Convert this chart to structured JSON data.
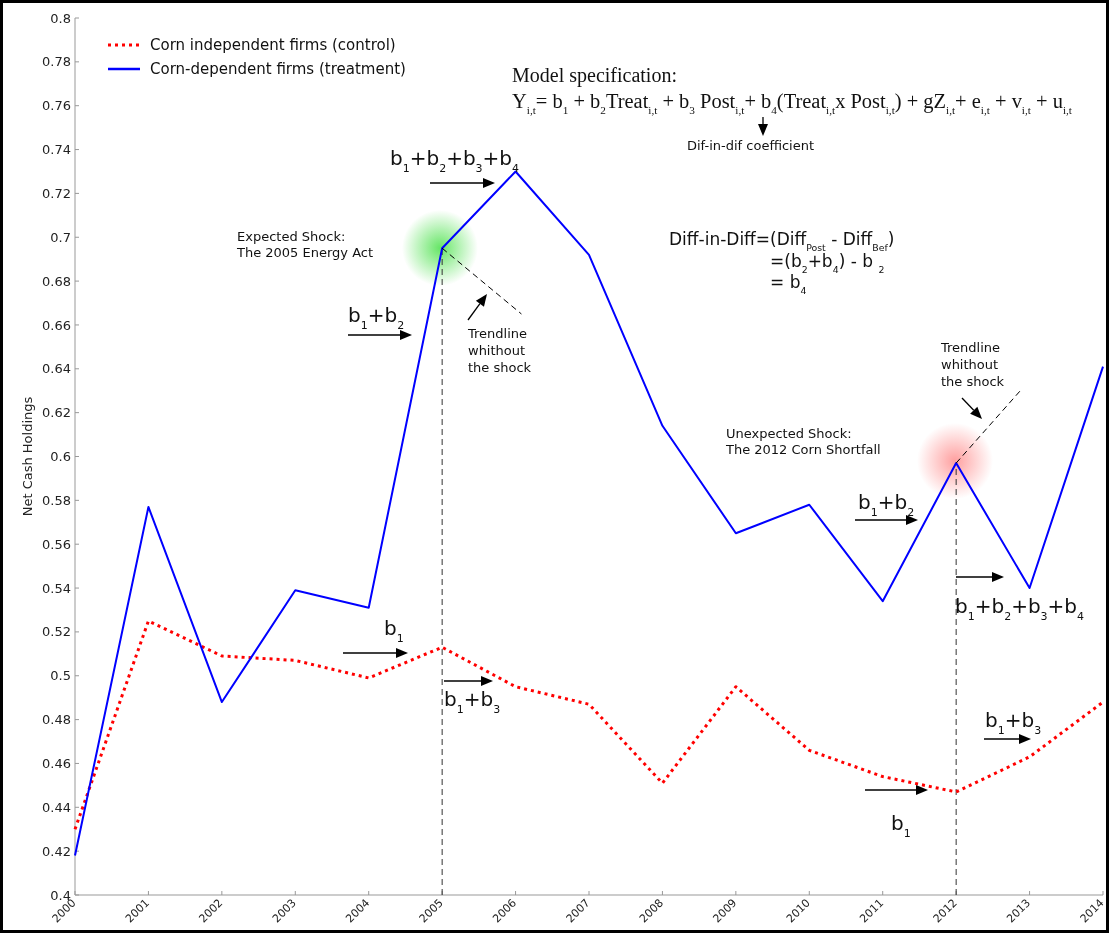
{
  "chart_data": {
    "type": "line",
    "ylabel": "Net Cash Holdings",
    "x": [
      2000,
      2001,
      2002,
      2003,
      2004,
      2005,
      2006,
      2007,
      2008,
      2009,
      2010,
      2011,
      2012,
      2013,
      2014
    ],
    "xlim": [
      2000,
      2014
    ],
    "xticks": [
      2000,
      2001,
      2002,
      2003,
      2004,
      2005,
      2006,
      2007,
      2008,
      2009,
      2010,
      2011,
      2012,
      2013,
      2014
    ],
    "ylim": [
      0.4,
      0.8
    ],
    "yticks": [
      0.4,
      0.42,
      0.44,
      0.46,
      0.48,
      0.5,
      0.52,
      0.54,
      0.56,
      0.58,
      0.6,
      0.62,
      0.64,
      0.66,
      0.68,
      0.7,
      0.72,
      0.74,
      0.76,
      0.78,
      0.8
    ],
    "legend": "top left",
    "series": [
      {
        "name": "Corn independent firms (control)",
        "color": "#ff0000",
        "line_style": "dotted",
        "values": [
          0.43,
          0.525,
          0.509,
          0.507,
          0.499,
          0.513,
          0.495,
          0.487,
          0.451,
          0.495,
          0.466,
          0.454,
          0.447,
          0.463,
          0.488
        ]
      },
      {
        "name": "Corn-dependent firms (treatment)",
        "color": "#0000ff",
        "line_style": "solid",
        "values": [
          0.418,
          0.577,
          0.488,
          0.539,
          0.531,
          0.695,
          0.73,
          0.692,
          0.614,
          0.565,
          0.578,
          0.534,
          0.597,
          0.54,
          0.641
        ]
      },
      {
        "type": "line",
        "color": "#000000",
        "line_style": "dashed",
        "x": [
          2005,
          2006.08
        ],
        "values": [
          0.695,
          0.665
        ]
      },
      {
        "type": "line",
        "color": "#000000",
        "line_style": "dashed",
        "x": [
          2012,
          2012.9
        ],
        "values": [
          0.597,
          0.631
        ]
      }
    ],
    "ref_lines": [
      {
        "axis": "x",
        "value": 2005,
        "color": "#333333",
        "line_style": "dashed"
      },
      {
        "axis": "x",
        "value": 2012,
        "color": "#333333",
        "line_style": "dashed"
      }
    ],
    "annotations": [
      "Model specification:",
      "Y$_{i,t}$= b$_{1}$ + b$_{2}$Treat$_{i,t}$ + b$_{3}$ Post$_{i,t}$+ b$_{4}$(Treat$_{i,t}$x Post$_{i,t}$) + gZ$_{i,t}$+  e$_{i,t}$ + v$_{i,t}$ + u$_{i,t}$",
      "Dif-in-dif coefficient",
      "Diff-in-Diff=(Diff$_{Post}$ - Diff$_{Bef}$)",
      "=(b$_{2}$+b$_{4}$) - b $_{2}$",
      "= b$_{4}$",
      "Expected Shock:\nThe 2005 Energy Act",
      "Trendline\nwhithout\nthe shock",
      "Unexpected Shock:\nThe 2012 Corn Shortfall",
      "Trendline\nwhithout\nthe shock",
      "b$_{1}$+b$_{2}$",
      "b$_{1}$+b$_{2}$+b$_{3}$+b$_{4}$",
      "b$_{1}$",
      "b$_{1}$+b$_{3}$",
      "b$_{1}$+b$_{2}$",
      "b$_{1}$+b$_{2}$+b$_{3}$+b$_{4}$",
      "b$_{1}$",
      "b$_{1}$+b$_{3}$"
    ]
  }
}
